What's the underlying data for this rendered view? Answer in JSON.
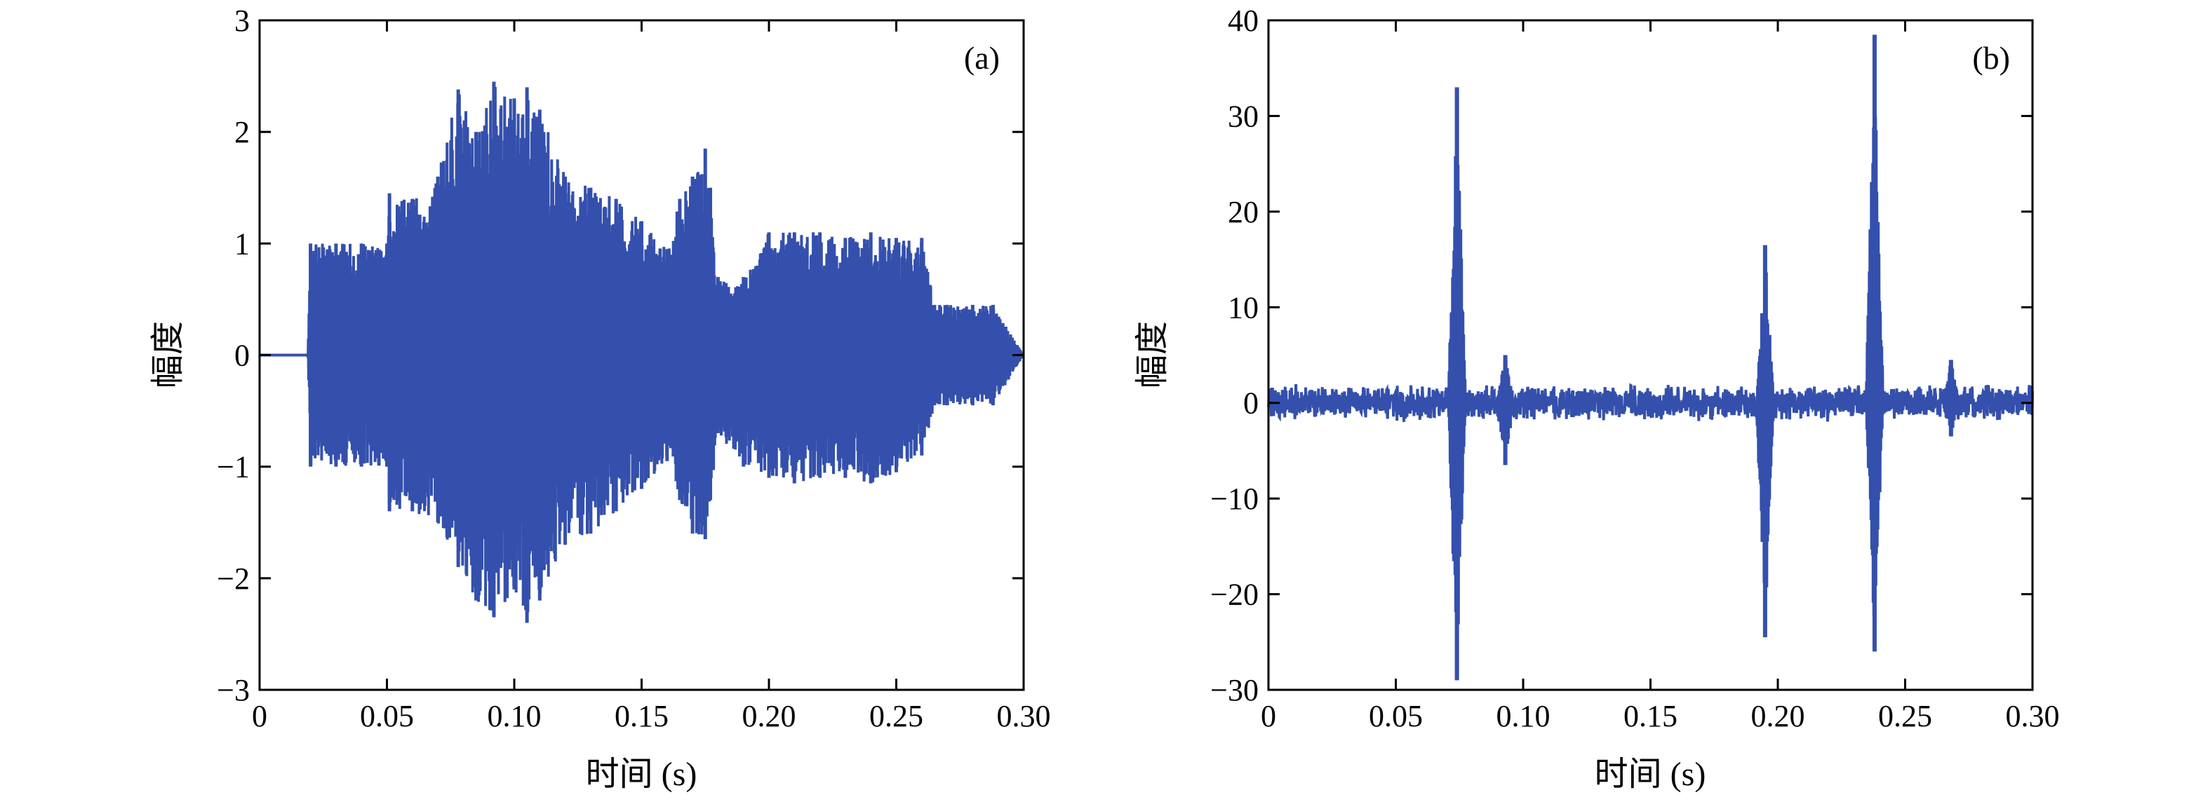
{
  "colors": {
    "series": "#3450AC",
    "axis": "#000000",
    "background": "#ffffff"
  },
  "chart_data": [
    {
      "type": "line",
      "panel_label": "(a)",
      "xlabel": "时间 (s)",
      "ylabel": "幅度",
      "xlim": [
        0,
        0.3
      ],
      "ylim": [
        -3,
        3
      ],
      "xticks": [
        0,
        0.05,
        0.1,
        0.15,
        0.2,
        0.25,
        0.3
      ],
      "xtick_labels": [
        "0",
        "0.05",
        "0.10",
        "0.15",
        "0.20",
        "0.25",
        "0.30"
      ],
      "yticks": [
        -3,
        -2,
        -1,
        0,
        1,
        2,
        3
      ],
      "ytick_labels": [
        "−3",
        "−2",
        "−1",
        "0",
        "1",
        "2",
        "3"
      ],
      "series": [
        {
          "x": [
            0.0,
            0.019,
            0.02,
            0.03,
            0.04,
            0.05,
            0.051,
            0.06,
            0.07,
            0.078,
            0.085,
            0.092,
            0.1,
            0.105,
            0.11,
            0.12,
            0.13,
            0.14,
            0.15,
            0.16,
            0.165,
            0.17,
            0.175,
            0.177,
            0.18,
            0.19,
            0.2,
            0.21,
            0.22,
            0.23,
            0.24,
            0.25,
            0.26,
            0.265,
            0.27,
            0.28,
            0.288,
            0.3
          ],
          "envelope_upper": [
            0.0,
            0.0,
            1.0,
            1.0,
            1.0,
            1.0,
            1.45,
            1.4,
            1.6,
            2.38,
            2.0,
            2.45,
            2.3,
            2.4,
            2.2,
            1.6,
            1.5,
            1.4,
            1.2,
            0.95,
            1.4,
            1.6,
            1.85,
            1.5,
            0.7,
            0.7,
            1.1,
            1.1,
            1.1,
            1.05,
            1.1,
            1.05,
            1.05,
            0.45,
            0.45,
            0.45,
            0.45,
            0.0
          ],
          "envelope_lower": [
            0.0,
            0.0,
            -1.0,
            -1.0,
            -1.0,
            -1.0,
            -1.4,
            -1.4,
            -1.5,
            -1.9,
            -2.2,
            -2.35,
            -2.1,
            -2.4,
            -2.2,
            -1.7,
            -1.6,
            -1.4,
            -1.2,
            -0.95,
            -1.3,
            -1.6,
            -1.65,
            -1.3,
            -0.7,
            -1.0,
            -1.1,
            -1.15,
            -1.1,
            -1.1,
            -1.15,
            -1.05,
            -0.9,
            -0.45,
            -0.45,
            -0.45,
            -0.45,
            0.0
          ]
        }
      ]
    },
    {
      "type": "line",
      "panel_label": "(b)",
      "xlabel": "时间 (s)",
      "ylabel": "幅度",
      "xlim": [
        0,
        0.3
      ],
      "ylim": [
        -30,
        40
      ],
      "xticks": [
        0,
        0.05,
        0.1,
        0.15,
        0.2,
        0.25,
        0.3
      ],
      "xtick_labels": [
        "0",
        "0.05",
        "0.10",
        "0.15",
        "0.20",
        "0.25",
        "0.30"
      ],
      "yticks": [
        -30,
        -20,
        -10,
        0,
        10,
        20,
        30,
        40
      ],
      "ytick_labels": [
        "−30",
        "−20",
        "−10",
        "0",
        "10",
        "20",
        "30",
        "40"
      ],
      "series": [
        {
          "noise_amplitude": 2.0,
          "spikes": [
            {
              "x": 0.074,
              "max": 33,
              "min": -29
            },
            {
              "x": 0.195,
              "max": 16.5,
              "min": -24.5
            },
            {
              "x": 0.238,
              "max": 38.5,
              "min": -26
            },
            {
              "x": 0.268,
              "max": 4.5,
              "min": -3.5
            },
            {
              "x": 0.093,
              "max": 5.0,
              "min": -6.5
            }
          ]
        }
      ]
    }
  ]
}
